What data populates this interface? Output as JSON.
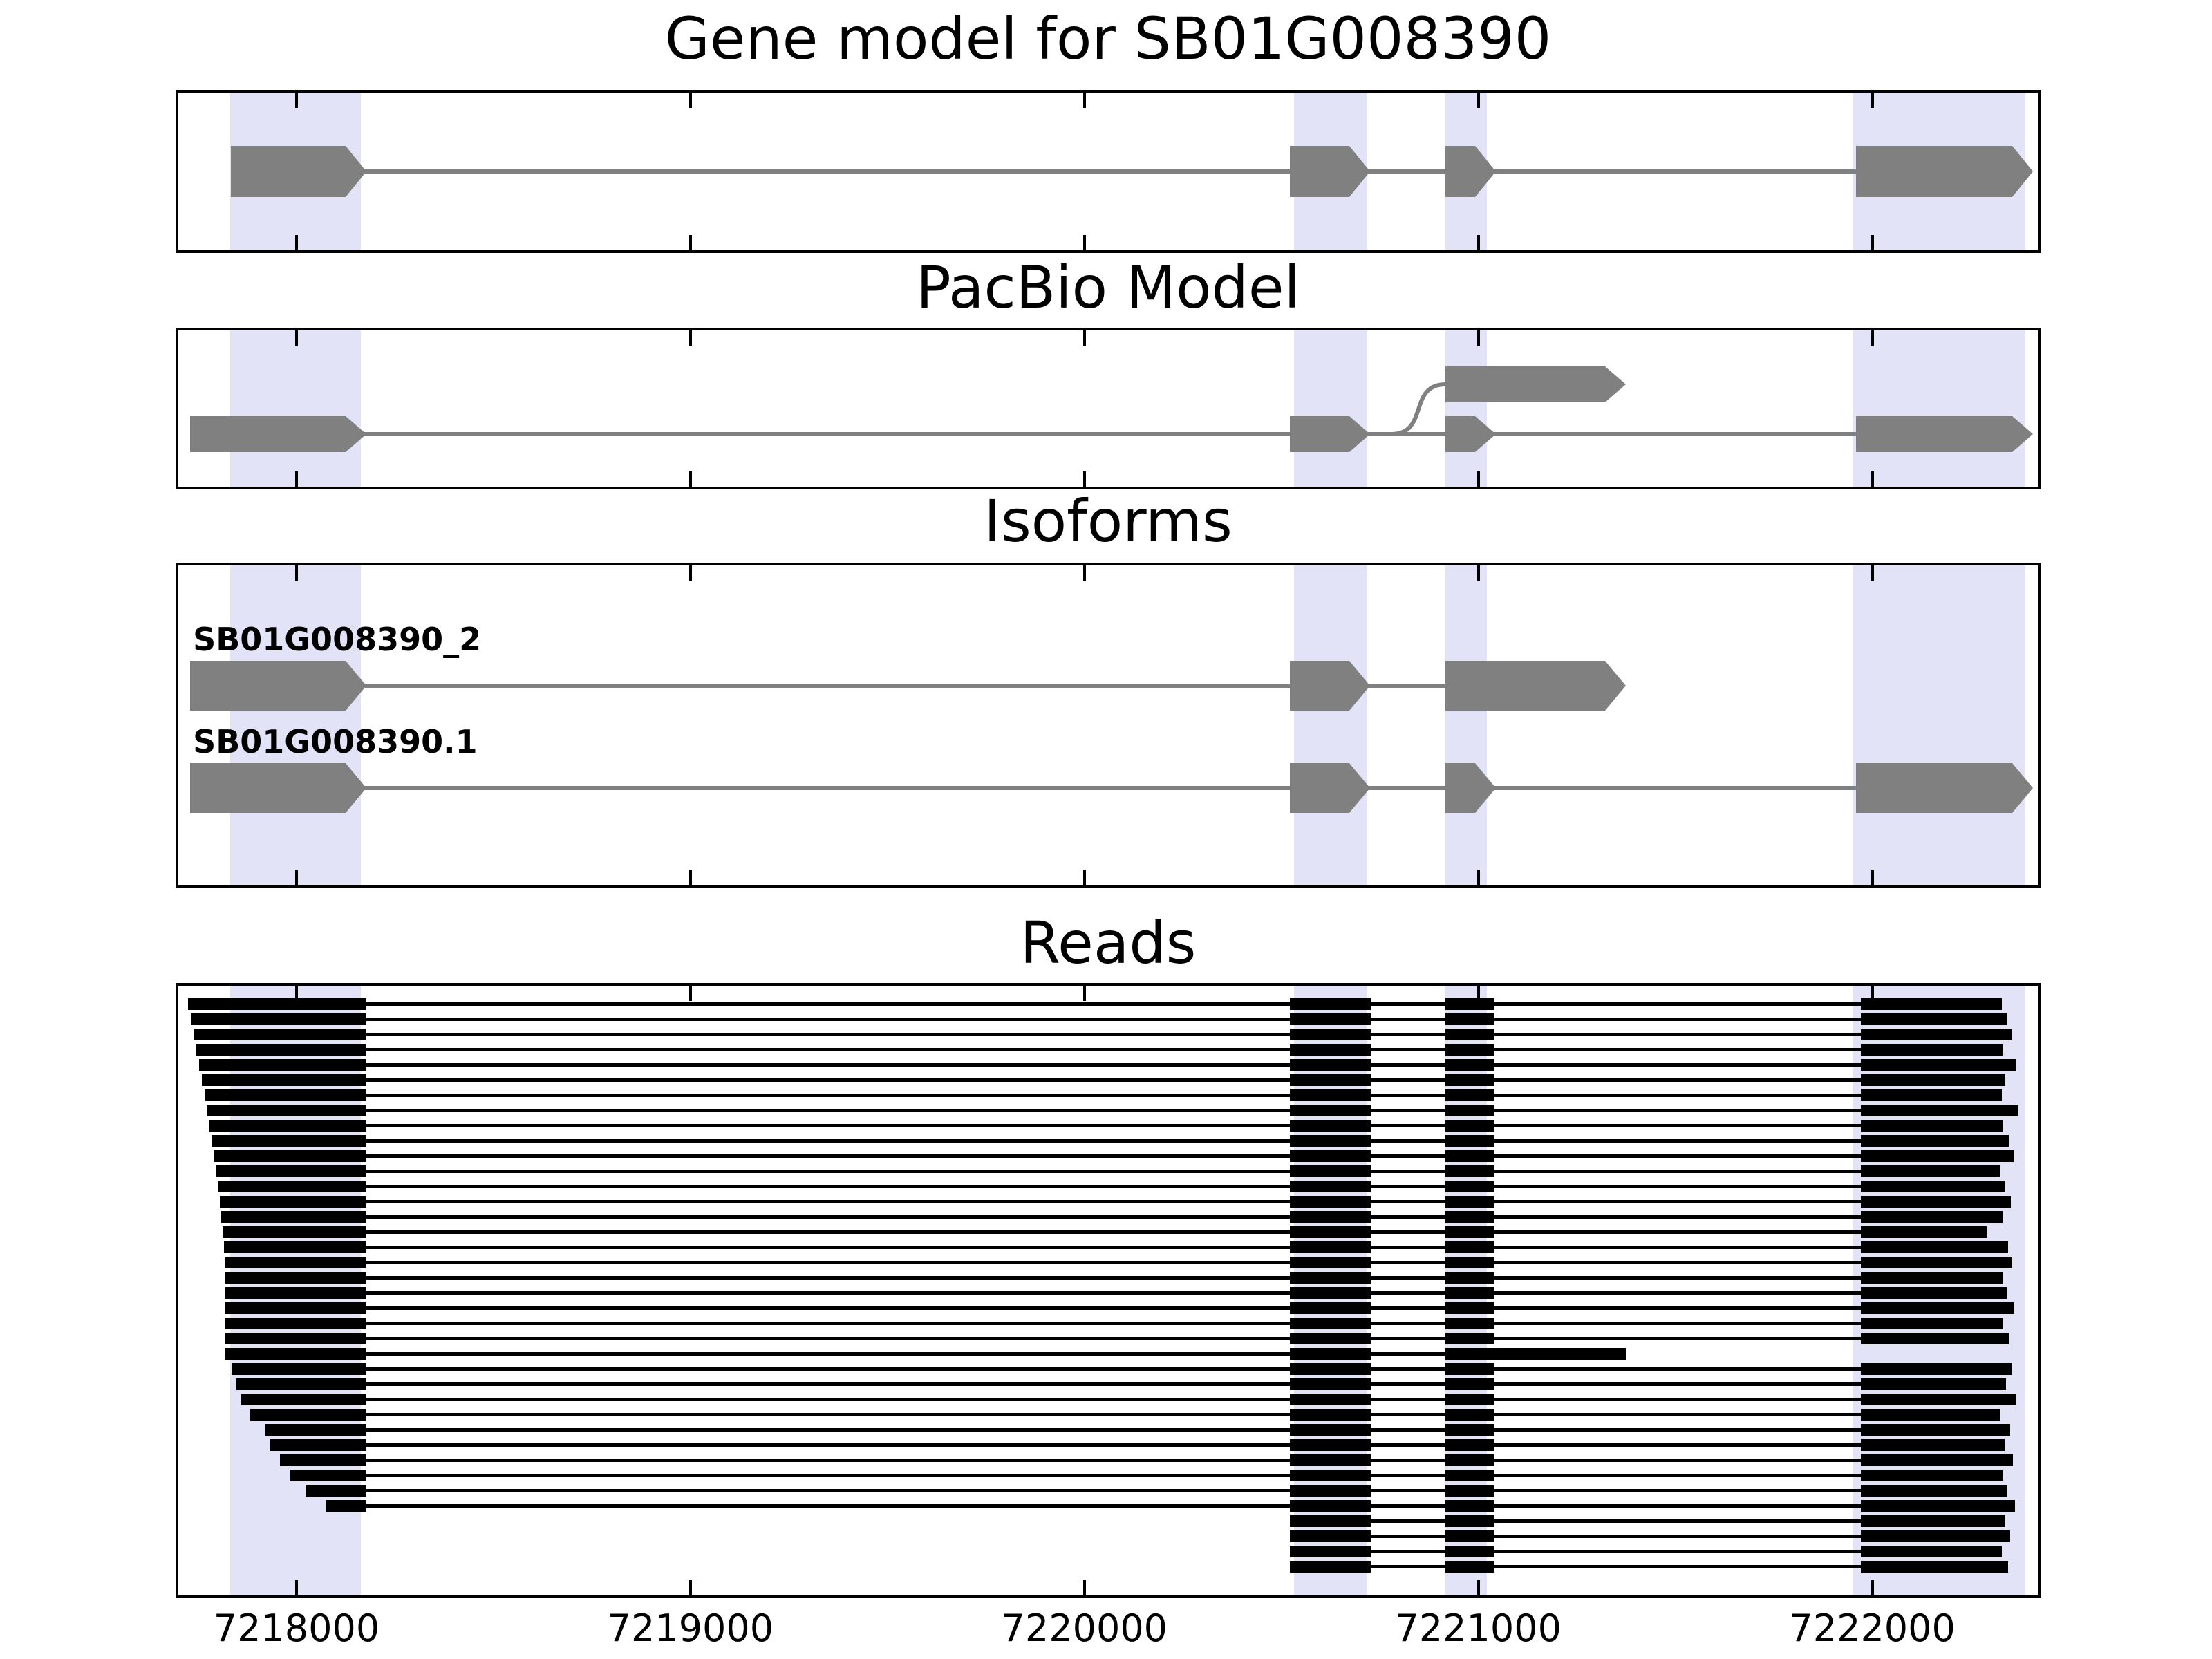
{
  "chart_data": {
    "type": "genome-tracks",
    "axis": {
      "domain": [
        7217700,
        7222420
      ],
      "ticks": [
        7218000,
        7219000,
        7220000,
        7221000,
        7222000
      ],
      "tick_labels": [
        "7218000",
        "7219000",
        "7220000",
        "7221000",
        "7222000"
      ],
      "grid": false
    },
    "colors": {
      "exon": "#808080",
      "intron_line": "#808080",
      "highlight": "#e3e3f8",
      "read": "#000000",
      "panel_border": "#000000",
      "background": "#ffffff",
      "text": "#000000"
    },
    "highlight_regions": [
      {
        "start": 7217831,
        "end": 7218164
      },
      {
        "start": 7220532,
        "end": 7220718
      },
      {
        "start": 7220917,
        "end": 7221022
      },
      {
        "start": 7221950,
        "end": 7222389
      }
    ],
    "read_blocks": {
      "left_block_end": 7218177,
      "exon2": [
        7220521,
        7220726
      ],
      "exon3": [
        7220917,
        7221040
      ],
      "right_block_start": 7221970
    },
    "panels": [
      {
        "id": "gene-model",
        "title": "Gene model for SB01G008390",
        "transcripts": [
          {
            "label": null,
            "row": 0.5,
            "exons": [
              [
                7217833,
                7218125
              ],
              [
                7220521,
                7220673
              ],
              [
                7220917,
                7220991
              ],
              [
                7221959,
                7222355
              ]
            ]
          }
        ]
      },
      {
        "id": "pacbio",
        "title": "PacBio Model",
        "transcripts": [
          {
            "label": null,
            "row": 0.664,
            "exons": [
              [
                7217730,
                7218125
              ],
              [
                7220521,
                7220673
              ],
              [
                7220917,
                7220991
              ],
              [
                7221959,
                7222355
              ]
            ]
          },
          {
            "label": null,
            "row": 0.345,
            "exons": [
              [
                7220917,
                7221322
              ]
            ]
          }
        ],
        "splice_curve": {
          "from": 7220726,
          "from_row": 0.664,
          "to": 7220917,
          "to_row": 0.345
        }
      },
      {
        "id": "isoforms",
        "title": "Isoforms",
        "transcripts": [
          {
            "label": "SB01G008390_2",
            "row": 0.377,
            "exons": [
              [
                7217730,
                7218125
              ],
              [
                7220521,
                7220673
              ],
              [
                7220917,
                7221322
              ]
            ]
          },
          {
            "label": "SB01G008390.1",
            "row": 0.697,
            "exons": [
              [
                7217730,
                7218125
              ],
              [
                7220521,
                7220673
              ],
              [
                7220917,
                7220991
              ],
              [
                7221959,
                7222355
              ]
            ]
          }
        ]
      },
      {
        "id": "reads",
        "title": "Reads",
        "reads": [
          {
            "start": 7217725,
            "end": 7222328,
            "form": "full"
          },
          {
            "start": 7217732,
            "end": 7222342,
            "form": "full"
          },
          {
            "start": 7217739,
            "end": 7222354,
            "form": "full"
          },
          {
            "start": 7217746,
            "end": 7222331,
            "form": "full"
          },
          {
            "start": 7217753,
            "end": 7222364,
            "form": "full"
          },
          {
            "start": 7217760,
            "end": 7222338,
            "form": "full"
          },
          {
            "start": 7217767,
            "end": 7222328,
            "form": "full"
          },
          {
            "start": 7217774,
            "end": 7222369,
            "form": "full"
          },
          {
            "start": 7217779,
            "end": 7222331,
            "form": "full"
          },
          {
            "start": 7217784,
            "end": 7222347,
            "form": "full"
          },
          {
            "start": 7217789,
            "end": 7222359,
            "form": "full"
          },
          {
            "start": 7217795,
            "end": 7222326,
            "form": "full"
          },
          {
            "start": 7217800,
            "end": 7222338,
            "form": "full"
          },
          {
            "start": 7217805,
            "end": 7222352,
            "form": "full"
          },
          {
            "start": 7217809,
            "end": 7222331,
            "form": "full"
          },
          {
            "start": 7217812,
            "end": 7222291,
            "form": "full"
          },
          {
            "start": 7217816,
            "end": 7222345,
            "form": "full"
          },
          {
            "start": 7217817,
            "end": 7222355,
            "form": "full"
          },
          {
            "start": 7217817,
            "end": 7222330,
            "form": "full"
          },
          {
            "start": 7217817,
            "end": 7222342,
            "form": "full"
          },
          {
            "start": 7217817,
            "end": 7222360,
            "form": "full"
          },
          {
            "start": 7217817,
            "end": 7222333,
            "form": "full"
          },
          {
            "start": 7217817,
            "end": 7222347,
            "form": "full"
          },
          {
            "start": 7217819,
            "end": 7221374,
            "form": "short"
          },
          {
            "start": 7217835,
            "end": 7222354,
            "form": "full"
          },
          {
            "start": 7217847,
            "end": 7222340,
            "form": "full"
          },
          {
            "start": 7217859,
            "end": 7222364,
            "form": "full"
          },
          {
            "start": 7217882,
            "end": 7222326,
            "form": "full"
          },
          {
            "start": 7217921,
            "end": 7222349,
            "form": "full"
          },
          {
            "start": 7217933,
            "end": 7222335,
            "form": "full"
          },
          {
            "start": 7217958,
            "end": 7222357,
            "form": "full"
          },
          {
            "start": 7217982,
            "end": 7222330,
            "form": "full"
          },
          {
            "start": 7218022,
            "end": 7222343,
            "form": "full"
          },
          {
            "start": 7218075,
            "end": 7222362,
            "form": "full"
          },
          {
            "start": 7220521,
            "end": 7222337,
            "form": "right"
          },
          {
            "start": 7220521,
            "end": 7222350,
            "form": "right"
          },
          {
            "start": 7220521,
            "end": 7222328,
            "form": "right"
          },
          {
            "start": 7220521,
            "end": 7222345,
            "form": "right"
          }
        ]
      }
    ]
  }
}
